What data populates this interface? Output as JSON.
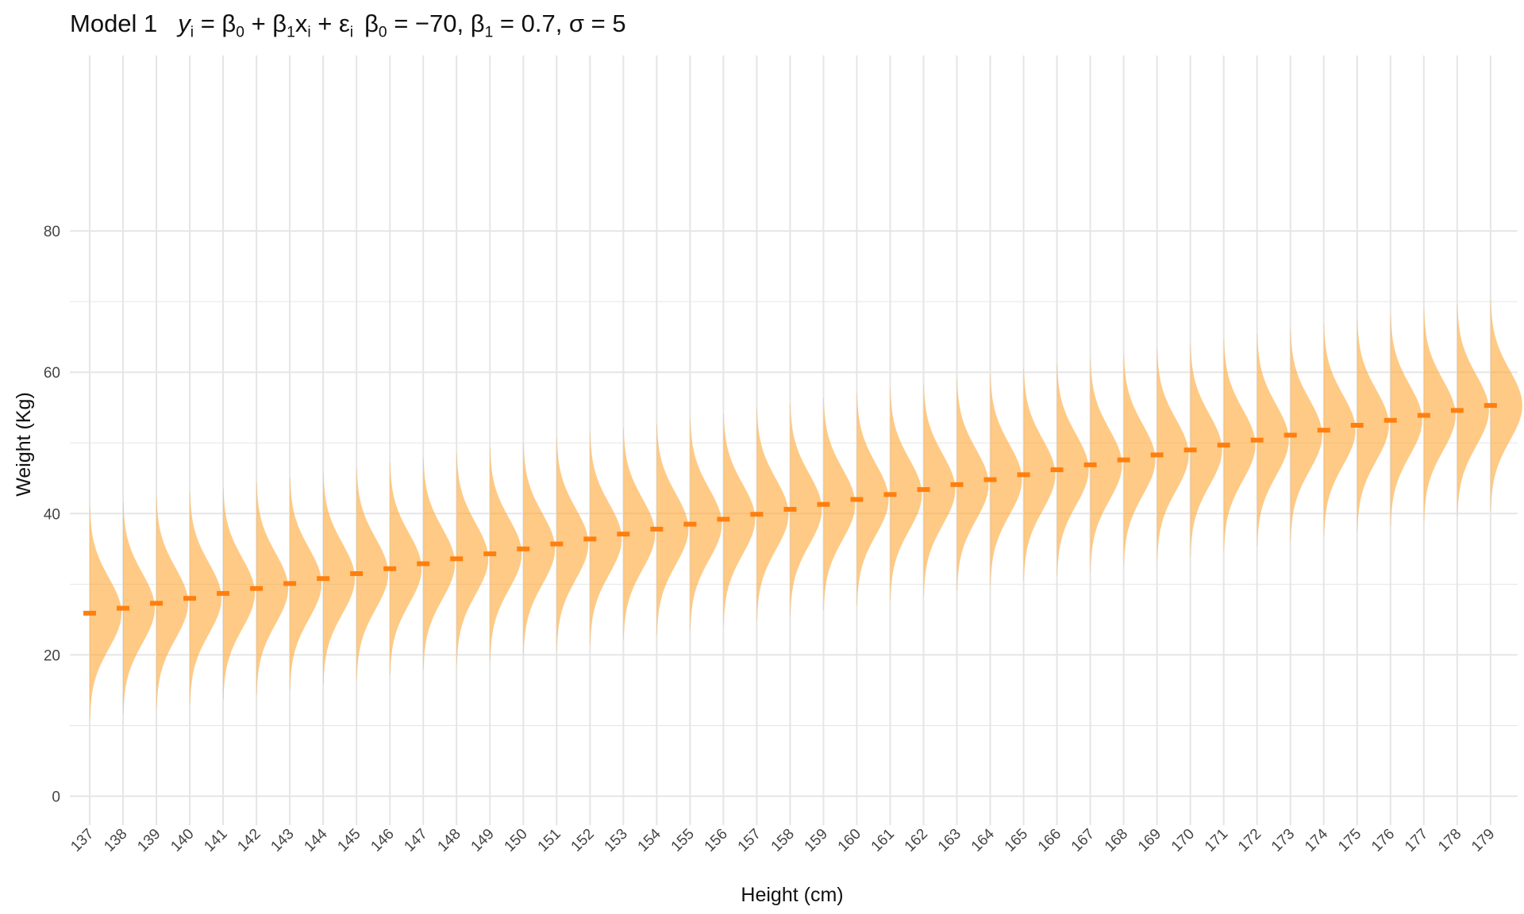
{
  "title": {
    "model_label": "Model 1",
    "y": "y",
    "sub_i": "i",
    "eq": " = ",
    "beta": "β",
    "sub0": "0",
    "sub1": "1",
    "plus": " + ",
    "x": "x",
    "eps": "ε",
    "b0_value": " = −70, ",
    "b1_value": " = 0.7, ",
    "sigma": "σ",
    "sigma_value": " = 5"
  },
  "colors": {
    "density_fill": "#ffa733",
    "mean_marker": "#ff7f0e",
    "grid": "#e5e5e5",
    "background": "#ffffff"
  },
  "chart_data": {
    "type": "area",
    "subtype": "half-violin normal densities per height",
    "xlabel": "Height (cm)",
    "ylabel": "Weight (Kg)",
    "x": [
      137,
      138,
      139,
      140,
      141,
      142,
      143,
      144,
      145,
      146,
      147,
      148,
      149,
      150,
      151,
      152,
      153,
      154,
      155,
      156,
      157,
      158,
      159,
      160,
      161,
      162,
      163,
      164,
      165,
      166,
      167,
      168,
      169,
      170,
      171,
      172,
      173,
      174,
      175,
      176,
      177,
      178,
      179
    ],
    "mean_weight": [
      25.9,
      26.6,
      27.3,
      28.0,
      28.7,
      29.4,
      30.1,
      30.8,
      31.5,
      32.2,
      32.9,
      33.6,
      34.3,
      35.0,
      35.7,
      36.4,
      37.1,
      37.8,
      38.5,
      39.2,
      39.9,
      40.6,
      41.3,
      42.0,
      42.7,
      43.4,
      44.1,
      44.8,
      45.5,
      46.2,
      46.9,
      47.6,
      48.3,
      49.0,
      49.7,
      50.4,
      51.1,
      51.8,
      52.5,
      53.2,
      53.9,
      54.6,
      55.3
    ],
    "model": {
      "beta0": -70,
      "beta1": 0.7,
      "sigma": 5
    },
    "ylim": [
      -3.5,
      84
    ],
    "yticks": [
      0,
      20,
      40,
      60,
      80
    ],
    "grid": true
  }
}
